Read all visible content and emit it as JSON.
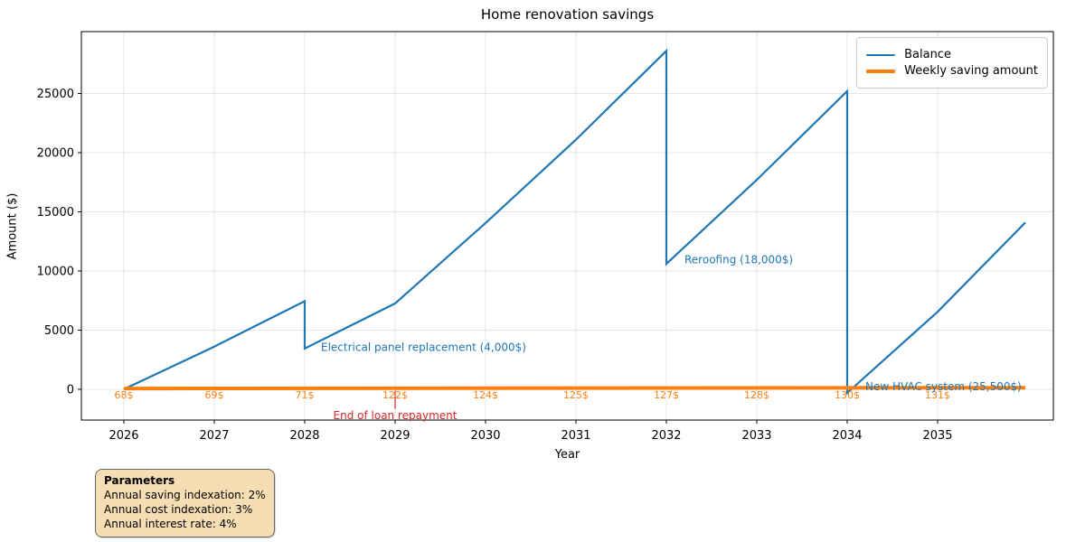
{
  "chart_data": {
    "type": "line",
    "title": "Home renovation savings",
    "xlabel": "Year",
    "ylabel": "Amount ($)",
    "x_ticks": [
      2026,
      2027,
      2028,
      2029,
      2030,
      2031,
      2032,
      2033,
      2034,
      2035
    ],
    "y_ticks": [
      0,
      5000,
      10000,
      15000,
      20000,
      25000
    ],
    "xlim": [
      2025.53,
      2036.28
    ],
    "ylim": [
      -2600,
      30230
    ],
    "grid": true,
    "legend": {
      "position": "upper right",
      "entries": [
        {
          "label": "Balance",
          "color": "#1f77b4"
        },
        {
          "label": "Weekly saving amount",
          "color": "#ff7f0e"
        }
      ]
    },
    "series": [
      {
        "name": "Balance",
        "color": "#1f77b4",
        "width": 2.2,
        "points": [
          [
            2026.0,
            0
          ],
          [
            2027.0,
            3610
          ],
          [
            2028.0,
            7450
          ],
          [
            2028.0,
            3450
          ],
          [
            2029.0,
            7260
          ],
          [
            2030.0,
            14050
          ],
          [
            2031.0,
            21100
          ],
          [
            2032.0,
            28600
          ],
          [
            2032.0,
            10600
          ],
          [
            2033.0,
            17700
          ],
          [
            2034.0,
            25200
          ],
          [
            2034.0,
            -300
          ],
          [
            2035.0,
            6550
          ],
          [
            2035.97,
            14100
          ]
        ]
      },
      {
        "name": "Weekly saving amount",
        "color": "#ff7f0e",
        "width": 4,
        "points": [
          [
            2026.0,
            68
          ],
          [
            2035.97,
            131
          ]
        ]
      }
    ],
    "weekly_labels": {
      "color": "#ff7f0e",
      "y": -460,
      "items": [
        {
          "x": 2026,
          "text": "68$"
        },
        {
          "x": 2027,
          "text": "69$"
        },
        {
          "x": 2028,
          "text": "71$"
        },
        {
          "x": 2029,
          "text": "122$"
        },
        {
          "x": 2030,
          "text": "124$"
        },
        {
          "x": 2031,
          "text": "125$"
        },
        {
          "x": 2032,
          "text": "127$"
        },
        {
          "x": 2033,
          "text": "128$"
        },
        {
          "x": 2034,
          "text": "130$"
        },
        {
          "x": 2035,
          "text": "131$"
        }
      ]
    },
    "annotations": [
      {
        "name": "electrical-panel",
        "text": "Electrical panel replacement (4,000$)",
        "x": 2028.18,
        "y": 3550,
        "color": "#1f77b4",
        "align": "left"
      },
      {
        "name": "reroofing",
        "text": "Reroofing (18,000$)",
        "x": 2032.2,
        "y": 10950,
        "color": "#1f77b4",
        "align": "left"
      },
      {
        "name": "new-hvac",
        "text": "New HVAC system (25,500$)",
        "x": 2034.2,
        "y": 230,
        "color": "#1f77b4",
        "align": "left"
      },
      {
        "name": "end-of-loan",
        "text": "End of loan repayment",
        "x": 2029,
        "y": -2220,
        "color": "#d62728",
        "align": "center",
        "marker_line": {
          "x": 2029,
          "y1": -120,
          "y2": -1650
        }
      }
    ],
    "events": [
      {
        "year": 2028,
        "label": "Electrical panel replacement",
        "cost": 4000
      },
      {
        "year": 2029,
        "label": "End of loan repayment"
      },
      {
        "year": 2032,
        "label": "Reroofing",
        "cost": 18000
      },
      {
        "year": 2034,
        "label": "New HVAC system",
        "cost": 25500
      }
    ]
  },
  "params_box": {
    "title": "Parameters",
    "lines": [
      "Annual saving indexation: 2%",
      "Annual cost indexation: 3%",
      "Annual interest rate: 4%"
    ],
    "background": "#f5deb3"
  },
  "colors": {
    "balance": "#1f77b4",
    "weekly_saving": "#ff7f0e",
    "event_red": "#d62728",
    "grid": "#e5e5e5"
  }
}
